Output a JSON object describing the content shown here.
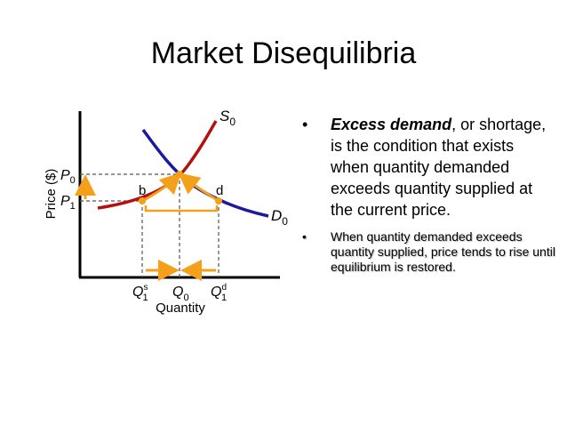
{
  "slide": {
    "title": "Market Disequilibria"
  },
  "diagram": {
    "y_axis_label": "Price ($)",
    "x_axis_label": "Quantity",
    "supply_label": "S",
    "supply_sub": "0",
    "demand_label": "D",
    "demand_sub": "0",
    "price_p0": "P",
    "price_p0_sub": "0",
    "price_p1": "P",
    "price_p1_sub": "1",
    "point_b": "b",
    "point_d": "d",
    "qty_q1s": "Q",
    "qty_q1s_sub": "1",
    "qty_q1s_sup": "s",
    "qty_q0": "Q",
    "qty_q0_sub": "0",
    "qty_q1d": "Q",
    "qty_q1d_sub": "1",
    "qty_q1d_sup": "d",
    "colors": {
      "supply": "#b31010",
      "demand": "#1a1aa0",
      "arrow": "#f5a01a",
      "axis": "#000000"
    }
  },
  "bullets": {
    "main_marker": "•",
    "main_emph": "Excess demand",
    "main_rest": ", or shortage, is the condition that exists when quantity demanded exceeds quantity supplied at the current price.",
    "sub_marker": "•",
    "sub_text": "When quantity demanded exceeds quantity supplied, price tends to rise until equilibrium is restored."
  }
}
